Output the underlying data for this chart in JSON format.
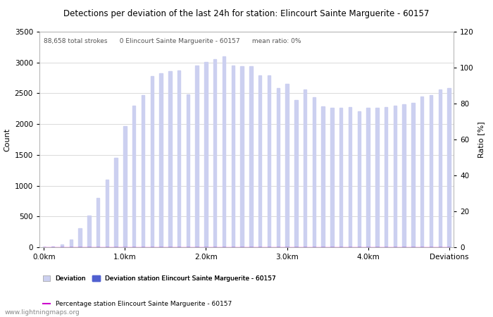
{
  "title": "Detections per deviation of the last 24h for station: Elincourt Sainte Marguerite - 60157",
  "subtitle": "88,658 total strokes      0 Elincourt Sainte Marguerite - 60157      mean ratio: 0%",
  "ylabel_left": "Count",
  "ylabel_right": "Ratio [%]",
  "xlim": [
    -0.5,
    45.5
  ],
  "ylim_left": [
    0,
    3500
  ],
  "ylim_right": [
    0,
    120
  ],
  "yticks_left": [
    0,
    500,
    1000,
    1500,
    2000,
    2500,
    3000,
    3500
  ],
  "yticks_right": [
    0,
    20,
    40,
    60,
    80,
    100,
    120
  ],
  "xtick_labels": [
    "0.0km",
    "1.0km",
    "2.0km",
    "3.0km",
    "4.0km",
    "Deviations"
  ],
  "xtick_positions": [
    0,
    9,
    18,
    27,
    36,
    45
  ],
  "bar_color_light": "#ccd0f0",
  "bar_color_dark": "#5060d0",
  "line_color": "#cc00cc",
  "grid_color": "#cccccc",
  "watermark": "www.lightningmaps.org",
  "bar_width": 0.35,
  "bar_values": [
    5,
    10,
    50,
    130,
    310,
    520,
    800,
    1100,
    1450,
    1970,
    2300,
    2470,
    2780,
    2820,
    2860,
    2870,
    2480,
    2950,
    3010,
    3050,
    3100,
    2950,
    2940,
    2940,
    2790,
    2790,
    2580,
    2650,
    2390,
    2560,
    2440,
    2290,
    2270,
    2270,
    2280,
    2210,
    2270,
    2270,
    2280,
    2300,
    2320,
    2340,
    2450,
    2470,
    2560,
    2580
  ],
  "station_bar_values": [
    0,
    0,
    0,
    0,
    0,
    0,
    0,
    0,
    0,
    0,
    0,
    0,
    0,
    0,
    0,
    0,
    0,
    0,
    0,
    0,
    0,
    0,
    0,
    0,
    0,
    0,
    0,
    0,
    0,
    0,
    0,
    0,
    0,
    0,
    0,
    0,
    0,
    0,
    0,
    0,
    0,
    0,
    0,
    0,
    0,
    0
  ],
  "ratio_values": [
    0,
    0,
    0,
    0,
    0,
    0,
    0,
    0,
    0,
    0,
    0,
    0,
    0,
    0,
    0,
    0,
    0,
    0,
    0,
    0,
    0,
    0,
    0,
    0,
    0,
    0,
    0,
    0,
    0,
    0,
    0,
    0,
    0,
    0,
    0,
    0,
    0,
    0,
    0,
    0,
    0,
    0,
    0,
    0,
    0,
    0
  ],
  "legend1_label": "Deviation",
  "legend2_label": "Deviation station Elincourt Sainte Marguerite - 60157",
  "legend3_label": "Percentage station Elincourt Sainte Marguerite - 60157",
  "fig_width": 7.0,
  "fig_height": 4.5,
  "dpi": 100
}
